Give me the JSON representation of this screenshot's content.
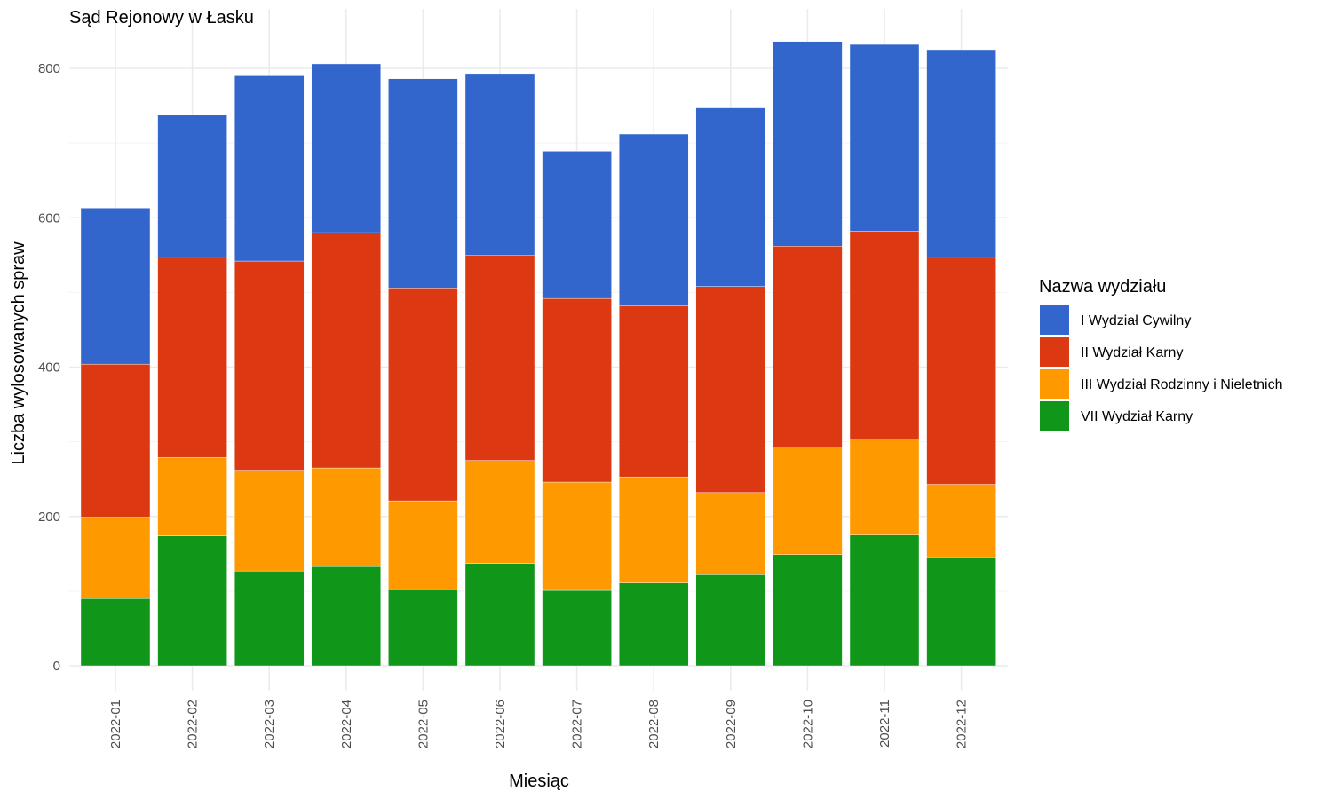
{
  "chart_data": {
    "type": "bar",
    "stacked": true,
    "title": "Sąd Rejonowy w Łasku",
    "xlabel": "Miesiąc",
    "ylabel": "Liczba wylosowanych spraw",
    "ylim": [
      0,
      850
    ],
    "yticks": [
      0,
      200,
      400,
      600,
      800
    ],
    "grid": true,
    "legend": {
      "title": "Nazwa wydziału",
      "placement": "right"
    },
    "categories": [
      "2022-01",
      "2022-02",
      "2022-03",
      "2022-04",
      "2022-05",
      "2022-06",
      "2022-07",
      "2022-08",
      "2022-09",
      "2022-10",
      "2022-11",
      "2022-12"
    ],
    "series": [
      {
        "name": "VII Wydział Karny",
        "color": "#109618",
        "values": [
          90,
          174,
          127,
          133,
          102,
          137,
          101,
          111,
          122,
          149,
          175,
          145
        ]
      },
      {
        "name": "III Wydział Rodzinny i Nieletnich",
        "color": "#FF9900",
        "values": [
          109,
          105,
          135,
          132,
          119,
          138,
          145,
          142,
          110,
          144,
          129,
          98
        ]
      },
      {
        "name": "II Wydział Karny",
        "color": "#DC3912",
        "values": [
          205,
          268,
          280,
          315,
          285,
          275,
          246,
          229,
          276,
          269,
          278,
          304
        ]
      },
      {
        "name": "I Wydział Cywilny",
        "color": "#3366CC",
        "values": [
          209,
          191,
          248,
          226,
          280,
          243,
          197,
          230,
          239,
          274,
          250,
          278
        ]
      }
    ],
    "legend_order": [
      "I Wydział Cywilny",
      "II Wydział Karny",
      "III Wydział Rodzinny i Nieletnich",
      "VII Wydział Karny"
    ]
  }
}
